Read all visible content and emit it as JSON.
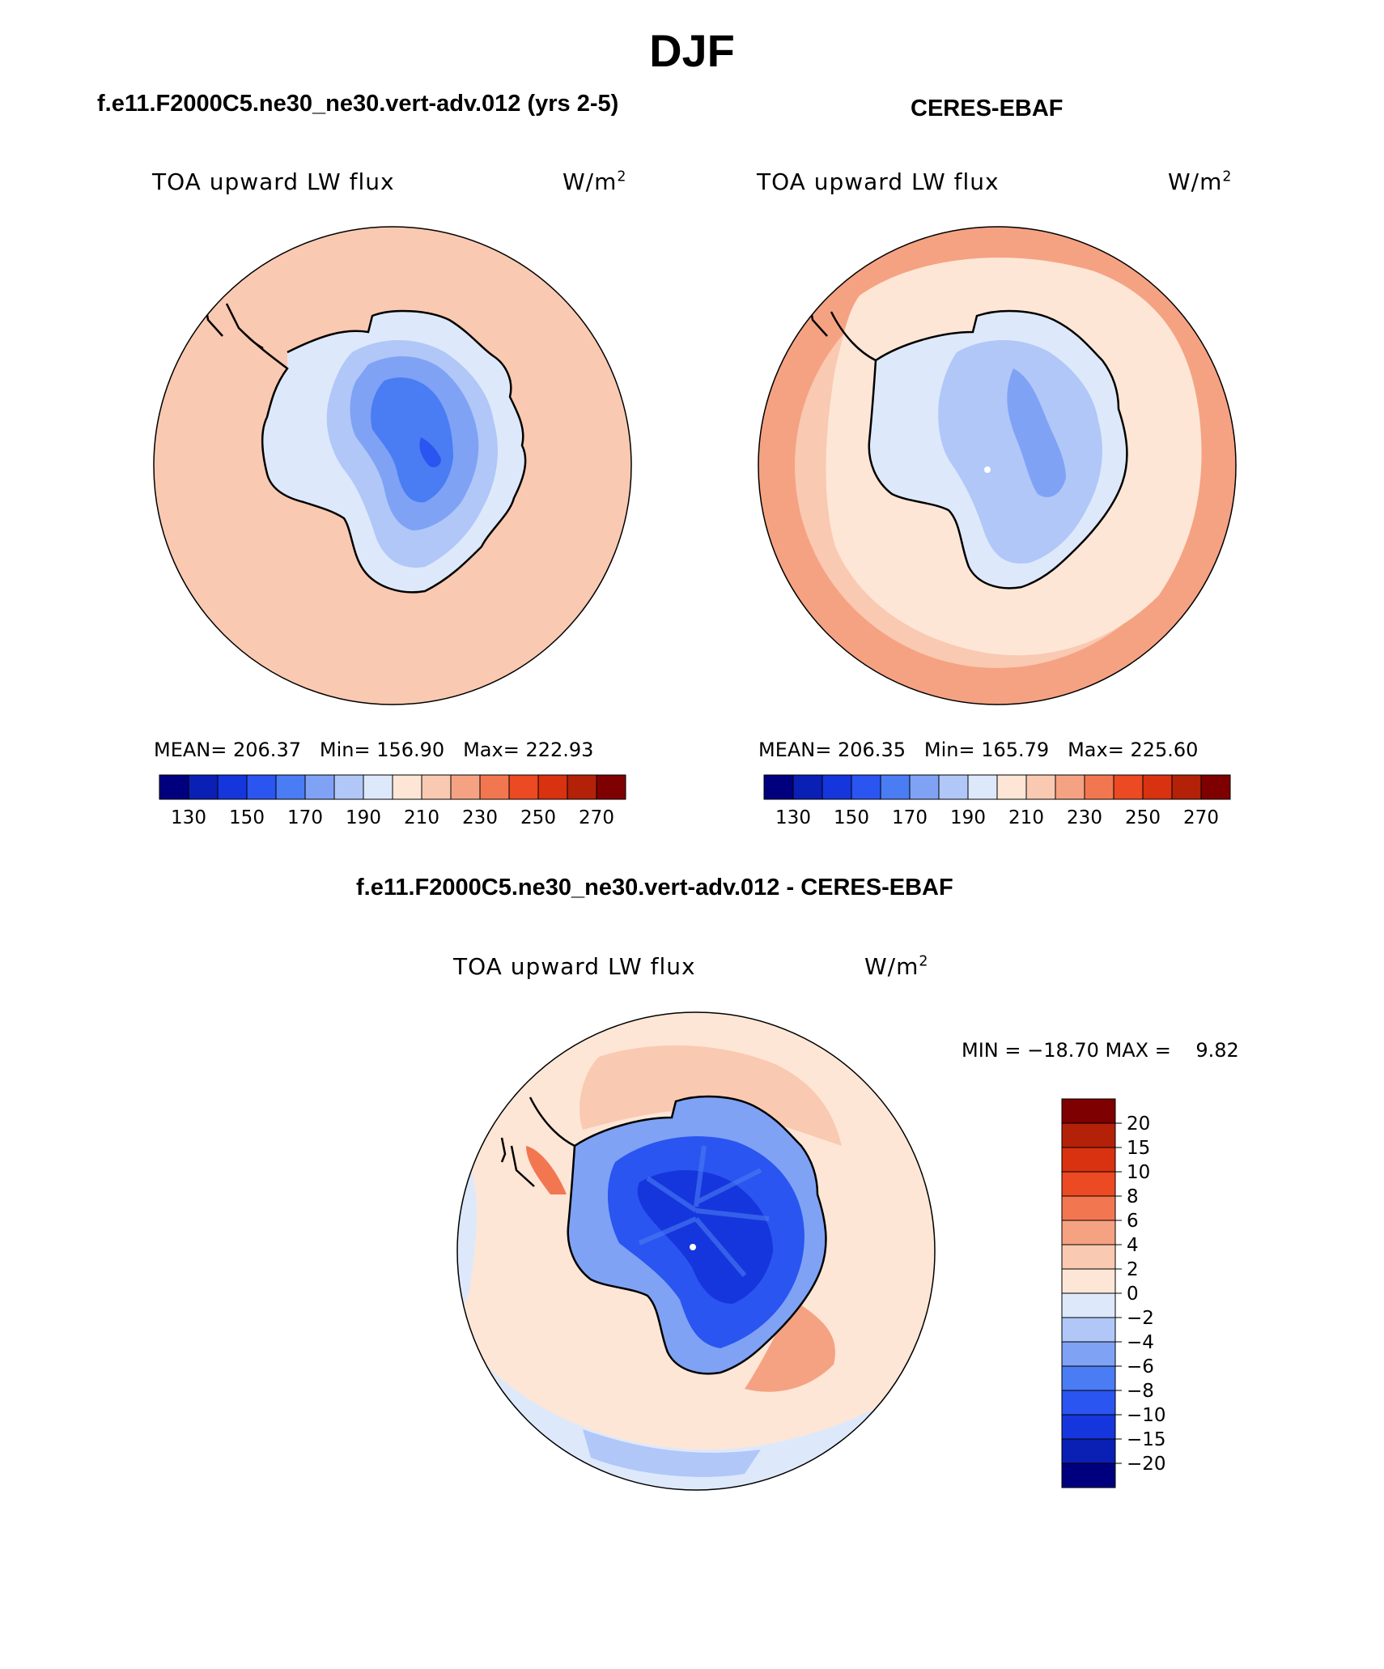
{
  "main_title": "DJF",
  "panels": {
    "model": {
      "title": "f.e11.F2000C5.ne30_ne30.vert-adv.012 (yrs 2-5)",
      "variable": "TOA upward LW flux",
      "units": "W/m",
      "units_exponent": "2",
      "mean_label": "MEAN=",
      "mean": "206.37",
      "min_label": "Min=",
      "min": "156.90",
      "max_label": "Max=",
      "max": "222.93"
    },
    "obs": {
      "title": "CERES-EBAF",
      "variable": "TOA upward LW flux",
      "units": "W/m",
      "units_exponent": "2",
      "mean_label": "MEAN=",
      "mean": "206.35",
      "min_label": "Min=",
      "min": "165.79",
      "max_label": "Max=",
      "max": "225.60"
    },
    "diff": {
      "title": "f.e11.F2000C5.ne30_ne30.vert-adv.012 - CERES-EBAF",
      "variable": "TOA upward LW flux",
      "units": "W/m",
      "units_exponent": "2",
      "minmax_text": "MIN = −18.70 MAX =    9.82"
    }
  },
  "colors": {
    "abs_scale": [
      "#00007f",
      "#0a1fb4",
      "#1536dd",
      "#2a55f0",
      "#4a7cf3",
      "#7fa2f5",
      "#b0c7f8",
      "#dde9fb",
      "#fde6d6",
      "#f9c9b1",
      "#f5a283",
      "#f27750",
      "#eb4a22",
      "#d93210",
      "#b32108",
      "#7f0000"
    ],
    "diff_scale": [
      "#00007f",
      "#0a1fb4",
      "#1536dd",
      "#2a55f0",
      "#4a7cf3",
      "#7fa2f5",
      "#b0c7f8",
      "#dde9fb",
      "#fde6d6",
      "#f9c9b1",
      "#f5a283",
      "#f27750",
      "#eb4a22",
      "#d93210",
      "#b32108",
      "#7f0000"
    ],
    "ocean_model": "#f9c9b1",
    "ocean_obs_edge": "#f5a283",
    "ocean_obs_inner": "#fde6d6"
  },
  "chart_data": [
    {
      "type": "heatmap",
      "title": "f.e11.F2000C5.ne30_ne30.vert-adv.012 (yrs 2-5)",
      "variable": "TOA upward LW flux",
      "units": "W/m2",
      "projection": "south-polar-stereographic",
      "colorbar_levels": [
        130,
        140,
        150,
        160,
        170,
        180,
        190,
        200,
        210,
        220,
        230,
        240,
        250,
        260,
        270
      ],
      "colorbar_ticks": [
        "130",
        "150",
        "170",
        "190",
        "210",
        "230",
        "250",
        "270"
      ],
      "mean": 206.37,
      "min": 156.9,
      "max": 222.93
    },
    {
      "type": "heatmap",
      "title": "CERES-EBAF",
      "variable": "TOA upward LW flux",
      "units": "W/m2",
      "projection": "south-polar-stereographic",
      "colorbar_levels": [
        130,
        140,
        150,
        160,
        170,
        180,
        190,
        200,
        210,
        220,
        230,
        240,
        250,
        260,
        270
      ],
      "colorbar_ticks": [
        "130",
        "150",
        "170",
        "190",
        "210",
        "230",
        "250",
        "270"
      ],
      "mean": 206.35,
      "min": 165.79,
      "max": 225.6
    },
    {
      "type": "heatmap",
      "title": "f.e11.F2000C5.ne30_ne30.vert-adv.012 - CERES-EBAF",
      "variable": "TOA upward LW flux",
      "units": "W/m2",
      "projection": "south-polar-stereographic",
      "colorbar_levels": [
        -20,
        -15,
        -10,
        -8,
        -6,
        -4,
        -2,
        0,
        2,
        4,
        6,
        8,
        10,
        15,
        20
      ],
      "colorbar_ticks": [
        "20",
        "15",
        "10",
        "8",
        "6",
        "4",
        "2",
        "0",
        "−2",
        "−4",
        "−6",
        "−8",
        "−10",
        "−15",
        "−20"
      ],
      "min": -18.7,
      "max": 9.82
    }
  ]
}
